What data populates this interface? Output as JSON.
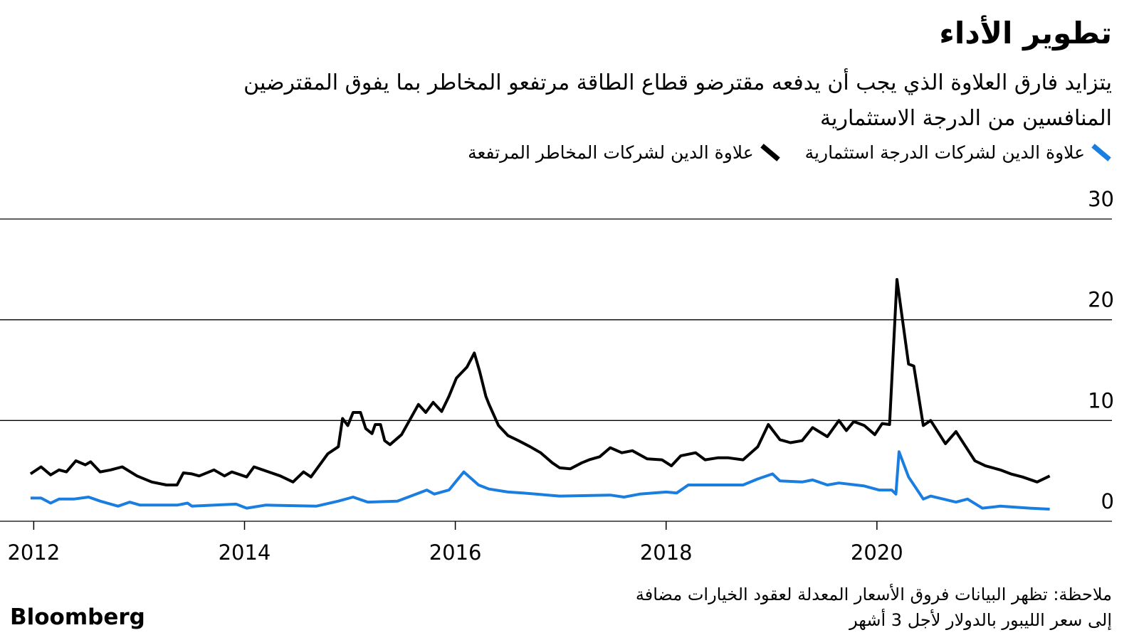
{
  "chart_data": {
    "type": "line",
    "title": "تطوير الأداء",
    "subtitle": "يتزايد فارق العلاوة الذي يجب أن يدفعه مقترضو قطاع الطاقة مرتفعو المخاطر بما يفوق المقترضين المنافسين من الدرجة الاستثمارية",
    "note": "ملاحظة: تظهر البيانات فروق الأسعار المعدلة لعقود الخيارات مضافة إلى سعر الليبور بالدولار لأجل 3 أشهر",
    "source": "Bloomberg",
    "xlim": [
      2011.68,
      2022.23
    ],
    "xticks": [
      2012,
      2014,
      2016,
      2018,
      2020
    ],
    "ylim": [
      0,
      30
    ],
    "yticks": [
      0,
      10,
      20,
      30
    ],
    "grid": true,
    "series": [
      {
        "name": "علاوة الدين لشركات الدرجة استثمارية",
        "color": "#1a7ee0",
        "x": [
          2011.97,
          2012.07,
          2012.16,
          2012.24,
          2012.38,
          2012.52,
          2012.63,
          2012.8,
          2012.91,
          2013.01,
          2013.36,
          2013.46,
          2013.5,
          2013.92,
          2014.02,
          2014.2,
          2014.68,
          2014.89,
          2015.03,
          2015.17,
          2015.45,
          2015.73,
          2015.8,
          2015.94,
          2016.08,
          2016.22,
          2016.32,
          2016.5,
          2016.64,
          2016.99,
          2017.47,
          2017.6,
          2017.75,
          2018.0,
          2018.1,
          2018.21,
          2018.49,
          2018.73,
          2018.87,
          2019.01,
          2019.08,
          2019.29,
          2019.39,
          2019.53,
          2019.64,
          2019.88,
          2020.02,
          2020.14,
          2020.18,
          2020.21,
          2020.3,
          2020.44,
          2020.51,
          2020.75,
          2020.86,
          2021.0,
          2021.17,
          2021.45,
          2021.64
        ],
        "values": [
          2.3,
          2.3,
          1.8,
          2.2,
          2.2,
          2.4,
          2.0,
          1.5,
          1.9,
          1.6,
          1.6,
          1.8,
          1.5,
          1.7,
          1.3,
          1.6,
          1.5,
          2.0,
          2.4,
          1.9,
          2.0,
          3.1,
          2.7,
          3.1,
          4.9,
          3.6,
          3.2,
          2.9,
          2.8,
          2.5,
          2.6,
          2.4,
          2.7,
          2.9,
          2.8,
          3.6,
          3.6,
          3.6,
          4.2,
          4.7,
          4.0,
          3.9,
          4.1,
          3.6,
          3.8,
          3.5,
          3.1,
          3.1,
          2.7,
          6.9,
          4.4,
          2.2,
          2.5,
          1.9,
          2.2,
          1.3,
          1.5,
          1.3,
          1.2
        ]
      },
      {
        "name": "علاوة الدين لشركات المخاطر المرتفعة",
        "color": "#000000",
        "x": [
          2011.97,
          2012.07,
          2012.16,
          2012.24,
          2012.31,
          2012.4,
          2012.49,
          2012.54,
          2012.63,
          2012.73,
          2012.84,
          2012.98,
          2013.12,
          2013.26,
          2013.36,
          2013.42,
          2013.5,
          2013.57,
          2013.71,
          2013.81,
          2013.88,
          2014.02,
          2014.09,
          2014.34,
          2014.46,
          2014.56,
          2014.63,
          2014.79,
          2014.89,
          2014.93,
          2014.98,
          2015.03,
          2015.1,
          2015.15,
          2015.21,
          2015.24,
          2015.29,
          2015.33,
          2015.38,
          2015.49,
          2015.65,
          2015.72,
          2015.79,
          2015.87,
          2015.94,
          2016.01,
          2016.11,
          2016.18,
          2016.23,
          2016.29,
          2016.32,
          2016.41,
          2016.5,
          2016.6,
          2016.71,
          2016.81,
          2016.92,
          2016.99,
          2017.09,
          2017.2,
          2017.27,
          2017.37,
          2017.47,
          2017.58,
          2017.68,
          2017.82,
          2017.96,
          2018.05,
          2018.14,
          2018.28,
          2018.37,
          2018.49,
          2018.59,
          2018.73,
          2018.87,
          2018.97,
          2019.08,
          2019.18,
          2019.29,
          2019.39,
          2019.53,
          2019.64,
          2019.71,
          2019.78,
          2019.88,
          2019.98,
          2020.05,
          2020.12,
          2020.19,
          2020.3,
          2020.35,
          2020.44,
          2020.51,
          2020.65,
          2020.75,
          2020.93,
          2021.03,
          2021.17,
          2021.27,
          2021.38,
          2021.52,
          2021.64
        ],
        "values": [
          4.7,
          5.4,
          4.6,
          5.1,
          4.9,
          6.0,
          5.6,
          5.9,
          4.9,
          5.1,
          5.4,
          4.5,
          3.9,
          3.6,
          3.6,
          4.8,
          4.7,
          4.5,
          5.1,
          4.5,
          4.9,
          4.4,
          5.4,
          4.5,
          3.9,
          4.9,
          4.4,
          6.7,
          7.4,
          10.2,
          9.5,
          10.8,
          10.8,
          9.2,
          8.7,
          9.6,
          9.6,
          8.0,
          7.6,
          8.6,
          11.6,
          10.8,
          11.8,
          10.9,
          12.4,
          14.2,
          15.3,
          16.7,
          14.9,
          12.4,
          11.6,
          9.5,
          8.5,
          8.0,
          7.4,
          6.8,
          5.8,
          5.3,
          5.2,
          5.8,
          6.1,
          6.4,
          7.3,
          6.8,
          7.0,
          6.2,
          6.1,
          5.5,
          6.5,
          6.8,
          6.1,
          6.3,
          6.3,
          6.1,
          7.4,
          9.6,
          8.1,
          7.8,
          8.0,
          9.3,
          8.4,
          10.0,
          9.0,
          9.9,
          9.5,
          8.6,
          9.7,
          9.6,
          24.0,
          15.6,
          15.4,
          9.5,
          10.0,
          7.7,
          8.9,
          6.0,
          5.5,
          5.1,
          4.7,
          4.4,
          3.9,
          4.5
        ]
      }
    ]
  }
}
